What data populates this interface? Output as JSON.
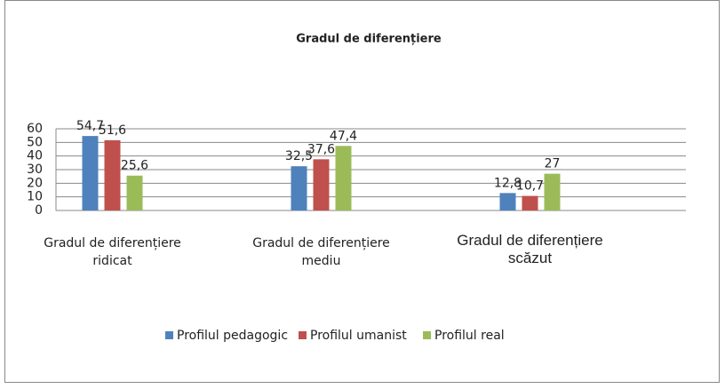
{
  "chart_data": {
    "type": "bar",
    "title": "Gradul de diferențiere",
    "categories": [
      "Gradul de diferențiere ridicat",
      "Gradul de diferențiere mediu",
      "Gradul de diferențiere scăzut"
    ],
    "series": [
      {
        "name": "Profilul pedagogic",
        "color": "#4f81bd",
        "values": [
          54.7,
          32.5,
          12.8
        ],
        "value_labels": [
          "54,7",
          "32,5",
          "12,8"
        ]
      },
      {
        "name": "Profilul umanist",
        "color": "#c0504d",
        "values": [
          51.6,
          37.6,
          10.7
        ],
        "value_labels": [
          "51,6",
          "37,6",
          "10,7"
        ]
      },
      {
        "name": "Profilul real",
        "color": "#9bbb59",
        "values": [
          25.6,
          47.4,
          27
        ],
        "value_labels": [
          "25,6",
          "47,4",
          "27"
        ]
      }
    ],
    "ylim": [
      0,
      60
    ],
    "yticks": [
      0,
      10,
      20,
      30,
      40,
      50,
      60
    ],
    "grid": true,
    "legend": "bottom"
  }
}
